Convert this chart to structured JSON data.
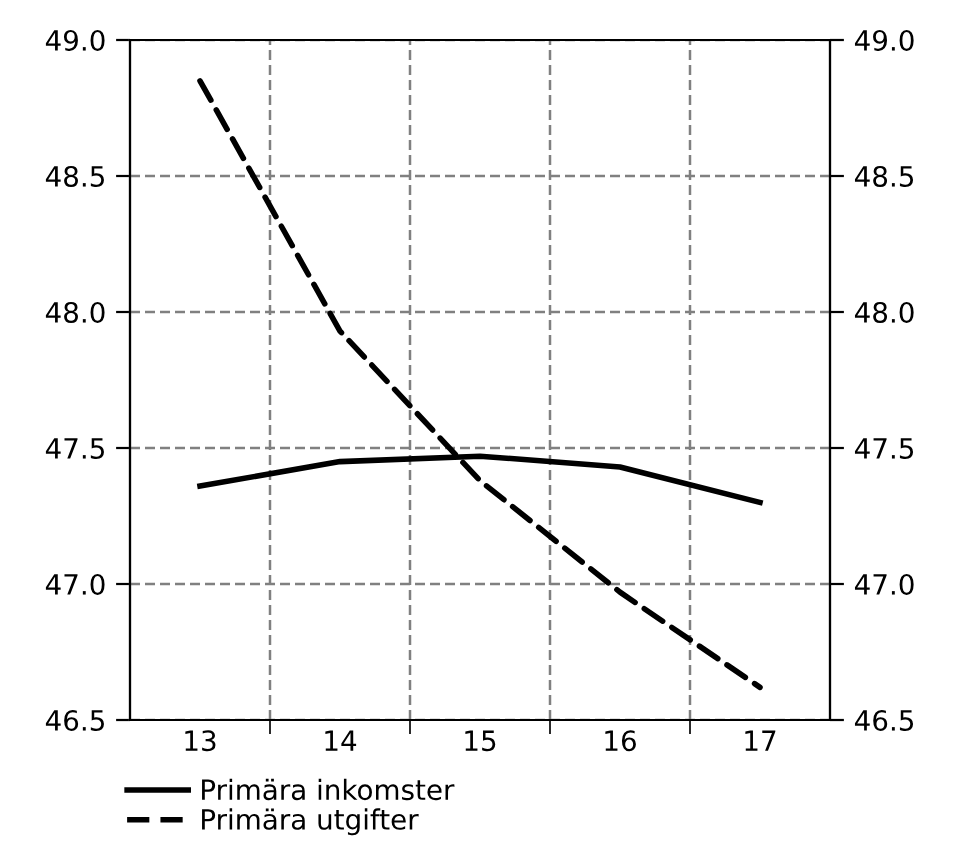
{
  "chart_data": {
    "type": "line",
    "categories": [
      "13",
      "14",
      "15",
      "16",
      "17"
    ],
    "series": [
      {
        "name": "Primära inkomster",
        "color": "#000000",
        "line_style": "solid",
        "values": [
          47.36,
          47.45,
          47.47,
          47.43,
          47.3
        ]
      },
      {
        "name": "Primära utgifter",
        "color": "#000000",
        "line_style": "dashed",
        "values": [
          48.85,
          47.93,
          47.38,
          46.97,
          46.62
        ]
      }
    ],
    "ylim": [
      46.5,
      49.0
    ],
    "yticks": [
      {
        "value": 46.5,
        "label": "46.5"
      },
      {
        "value": 47.0,
        "label": "47.0"
      },
      {
        "value": 47.5,
        "label": "47.5"
      },
      {
        "value": 48.0,
        "label": "48.0"
      },
      {
        "value": 48.5,
        "label": "48.5"
      },
      {
        "value": 49.0,
        "label": "49.0"
      }
    ],
    "y2lim": [
      46.5,
      49.0
    ],
    "y2ticks": [
      {
        "value": 46.5,
        "label": "46.5"
      },
      {
        "value": 47.0,
        "label": "47.0"
      },
      {
        "value": 47.5,
        "label": "47.5"
      },
      {
        "value": 48.0,
        "label": "48.0"
      },
      {
        "value": 48.5,
        "label": "48.5"
      },
      {
        "value": 49.0,
        "label": "49.0"
      }
    ],
    "grid": true,
    "legend": "bottom",
    "marker": "none"
  }
}
